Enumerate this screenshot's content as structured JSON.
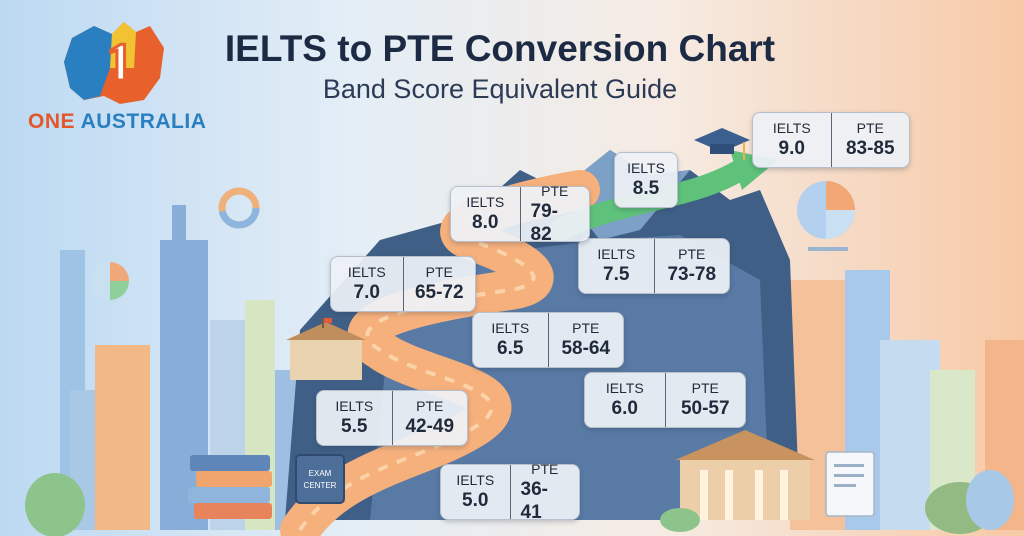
{
  "header": {
    "title": "IELTS to PTE Conversion Chart",
    "subtitle": "Band Score Equivalent Guide"
  },
  "brand": {
    "part1": "ONE ",
    "part2": "AUSTRALIA",
    "badge": "1"
  },
  "scene": {
    "exam_center_line1": "EXAM",
    "exam_center_line2": "CENTER"
  },
  "labels": {
    "ielts": "IELTS",
    "pte": "PTE"
  },
  "scores": [
    {
      "ielts": "5.0",
      "pte": "36-41"
    },
    {
      "ielts": "5.5",
      "pte": "42-49"
    },
    {
      "ielts": "6.0",
      "pte": "50-57"
    },
    {
      "ielts": "6.5",
      "pte": "58-64"
    },
    {
      "ielts": "7.0",
      "pte": "65-72"
    },
    {
      "ielts": "7.5",
      "pte": "73-78"
    },
    {
      "ielts": "8.0",
      "pte": "79-82"
    },
    {
      "ielts": "8.5",
      "pte": ""
    },
    {
      "ielts": "9.0",
      "pte": "83-85"
    }
  ],
  "colors": {
    "title": "#1c2a44",
    "road": "#f4a56a",
    "arrow": "#5fc27a",
    "brand_orange": "#e2572c",
    "brand_blue": "#2a7fc1"
  }
}
